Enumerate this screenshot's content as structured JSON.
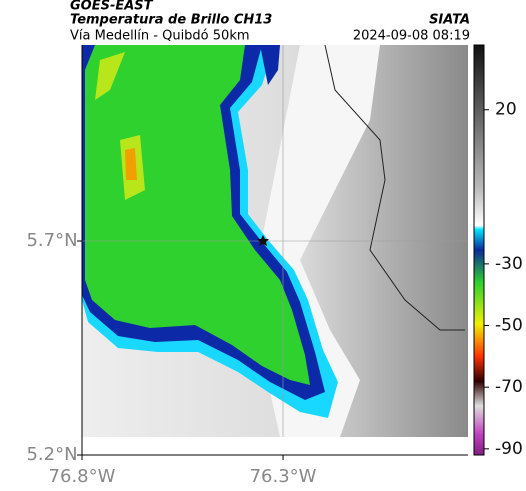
{
  "header": {
    "source": "GOES-EAST",
    "title": "Temperatura de Brillo CH13",
    "brand": "SIATA",
    "subtitle": "Vía Medellín - Quibdó 50km",
    "timestamp": "2024-09-08 08:19"
  },
  "map": {
    "xlim": [
      -76.8,
      -75.84
    ],
    "ylim": [
      5.2,
      6.158
    ],
    "xticks": [
      {
        "value": -76.8,
        "label": "76.8°W"
      },
      {
        "value": -76.3,
        "label": "76.3°W"
      }
    ],
    "yticks": [
      {
        "value": 5.2,
        "label": "5.2°N"
      },
      {
        "value": 5.7,
        "label": "5.7°N"
      }
    ]
  },
  "colorbar": {
    "lim": [
      -92,
      41
    ],
    "ticks": [
      20,
      -30,
      -50,
      -70,
      -90
    ]
  }
}
